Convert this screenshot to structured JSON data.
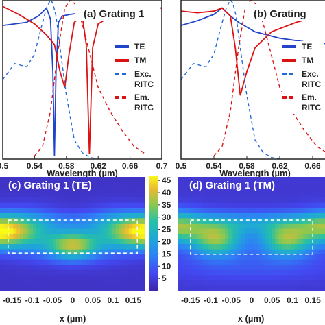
{
  "chart_data": [
    {
      "id": "a",
      "type": "line",
      "title": "(a)  Grating 1",
      "xlabel": "Wavelength (µm)",
      "xlim": [
        0.5,
        0.7
      ],
      "ylim": [
        0,
        1
      ],
      "x_ticks": [
        "0.5",
        "0.54",
        "0.58",
        "0.62",
        "0.66",
        "0.7"
      ],
      "x_tick_values": [
        0.5,
        0.54,
        0.58,
        0.62,
        0.66,
        0.7
      ],
      "legend_position": "right",
      "legend": [
        {
          "label": "TE",
          "color": "#2244cc",
          "dash": false
        },
        {
          "label": "TM",
          "color": "#dd1111",
          "dash": false
        },
        {
          "label": "Exc.\nRITC",
          "color": "#2266dd",
          "dash": true
        },
        {
          "label": "Em.\nRITC",
          "color": "#dd1111",
          "dash": true
        }
      ],
      "series": [
        {
          "name": "TE",
          "color": "#2244cc",
          "dash": false,
          "x": [
            0.5,
            0.53,
            0.545,
            0.555,
            0.56,
            0.563,
            0.565,
            0.567,
            0.57,
            0.575,
            0.585,
            0.6,
            0.62,
            0.65,
            0.7
          ],
          "y": [
            0.84,
            0.86,
            0.9,
            0.95,
            0.88,
            0.55,
            0.02,
            0.55,
            0.86,
            0.9,
            0.91,
            0.92,
            0.93,
            0.94,
            0.95
          ]
        },
        {
          "name": "TM",
          "color": "#dd1111",
          "dash": false,
          "x": [
            0.5,
            0.52,
            0.54,
            0.555,
            0.565,
            0.572,
            0.578,
            0.583,
            0.59,
            0.6,
            0.605,
            0.609,
            0.613,
            0.62,
            0.64,
            0.67,
            0.7
          ],
          "y": [
            0.96,
            0.91,
            0.85,
            0.78,
            0.72,
            0.55,
            0.45,
            0.65,
            0.86,
            0.9,
            0.72,
            0.03,
            0.7,
            0.85,
            0.91,
            0.94,
            0.95
          ]
        },
        {
          "name": "Exc. RITC",
          "color": "#2266dd",
          "dash": true,
          "x": [
            0.5,
            0.515,
            0.53,
            0.54,
            0.548,
            0.555,
            0.56,
            0.563,
            0.567,
            0.572,
            0.58,
            0.59,
            0.6,
            0.61,
            0.62
          ],
          "y": [
            0.5,
            0.6,
            0.58,
            0.66,
            0.82,
            0.95,
            1.0,
            0.98,
            0.9,
            0.7,
            0.4,
            0.12,
            0.04,
            0.01,
            0.0
          ]
        },
        {
          "name": "Em. RITC",
          "color": "#dd1111",
          "dash": true,
          "x": [
            0.54,
            0.55,
            0.56,
            0.57,
            0.578,
            0.585,
            0.592,
            0.6,
            0.61,
            0.62,
            0.635,
            0.65,
            0.665,
            0.68
          ],
          "y": [
            0.02,
            0.08,
            0.3,
            0.7,
            0.95,
            1.0,
            0.97,
            0.85,
            0.65,
            0.45,
            0.3,
            0.18,
            0.08,
            0.03
          ]
        }
      ]
    },
    {
      "id": "b",
      "type": "line",
      "title": "(b)  Grating",
      "xlabel": "Wavelength (µm)",
      "xlim": [
        0.5,
        0.7
      ],
      "ylim": [
        0,
        1
      ],
      "x_ticks": [
        "0.5",
        "0.54",
        "0.58",
        "0.62",
        "0.66"
      ],
      "x_tick_values": [
        0.5,
        0.54,
        0.58,
        0.62,
        0.66
      ],
      "legend_position": "right",
      "legend": [
        {
          "label": "TE",
          "color": "#2244cc",
          "dash": false
        },
        {
          "label": "TM",
          "color": "#dd1111",
          "dash": false
        },
        {
          "label": "Exc.\nRITC",
          "color": "#2266dd",
          "dash": true
        },
        {
          "label": "Em.\nRITC",
          "color": "#dd1111",
          "dash": true
        }
      ],
      "series": [
        {
          "name": "TE",
          "color": "#2244cc",
          "dash": false,
          "x": [
            0.5,
            0.52,
            0.54,
            0.55,
            0.56,
            0.57,
            0.59,
            0.62,
            0.66,
            0.7
          ],
          "y": [
            0.84,
            0.87,
            0.91,
            0.95,
            0.9,
            0.86,
            0.8,
            0.76,
            0.73,
            0.72
          ]
        },
        {
          "name": "TM",
          "color": "#dd1111",
          "dash": false,
          "x": [
            0.5,
            0.52,
            0.54,
            0.55,
            0.56,
            0.566,
            0.572,
            0.58,
            0.59,
            0.61,
            0.64,
            0.67,
            0.7
          ],
          "y": [
            0.93,
            0.92,
            0.93,
            0.95,
            0.9,
            0.7,
            0.4,
            0.55,
            0.7,
            0.8,
            0.86,
            0.9,
            0.92
          ]
        },
        {
          "name": "Exc. RITC",
          "color": "#2266dd",
          "dash": true,
          "x": [
            0.5,
            0.515,
            0.53,
            0.54,
            0.548,
            0.555,
            0.56,
            0.563,
            0.567,
            0.572,
            0.58,
            0.59,
            0.6,
            0.61,
            0.62
          ],
          "y": [
            0.5,
            0.6,
            0.58,
            0.66,
            0.82,
            0.95,
            1.0,
            0.98,
            0.9,
            0.7,
            0.4,
            0.12,
            0.04,
            0.01,
            0.0
          ]
        },
        {
          "name": "Em. RITC",
          "color": "#dd1111",
          "dash": true,
          "x": [
            0.54,
            0.55,
            0.56,
            0.57,
            0.578,
            0.585,
            0.592,
            0.6,
            0.61,
            0.62,
            0.635,
            0.65,
            0.665,
            0.68
          ],
          "y": [
            0.02,
            0.08,
            0.3,
            0.7,
            0.95,
            1.0,
            0.97,
            0.85,
            0.65,
            0.45,
            0.3,
            0.18,
            0.08,
            0.03
          ]
        }
      ]
    },
    {
      "id": "c",
      "type": "heatmap",
      "title": "(c)  Grating 1 (TE)",
      "xlabel": "x (µm)",
      "xlim": [
        -0.18,
        0.18
      ],
      "x_ticks": [
        "-0.15",
        "-0.1",
        "-0.05",
        "0",
        "0.05",
        "0.1",
        "0.15"
      ],
      "x_tick_values": [
        -0.15,
        -0.1,
        -0.05,
        0,
        0.05,
        0.1,
        0.15
      ],
      "colorbar": {
        "min": 0,
        "max": 47,
        "ticks": [
          "5",
          "10",
          "15",
          "20",
          "25",
          "30",
          "35",
          "40",
          "45"
        ],
        "tick_values": [
          5,
          10,
          15,
          20,
          25,
          30,
          35,
          40,
          45
        ]
      },
      "background_value": 3,
      "hotspots": [
        {
          "x": -0.19,
          "y": 0.52,
          "value": 47,
          "sx": 0.06,
          "sy": 0.1
        },
        {
          "x": 0.19,
          "y": 0.52,
          "value": 47,
          "sx": 0.06,
          "sy": 0.1
        },
        {
          "x": 0.0,
          "y": 0.4,
          "value": 37,
          "sx": 0.045,
          "sy": 0.09
        },
        {
          "x": -0.1,
          "y": 0.5,
          "value": 15,
          "sx": 0.05,
          "sy": 0.14
        },
        {
          "x": 0.1,
          "y": 0.5,
          "value": 15,
          "sx": 0.05,
          "sy": 0.14
        },
        {
          "x": 0.0,
          "y": 0.62,
          "value": 10,
          "sx": 0.12,
          "sy": 0.06
        }
      ],
      "dashed_box": {
        "x": [
          -0.16,
          0.16
        ],
        "y": [
          0.33,
          0.62
        ]
      }
    },
    {
      "id": "d",
      "type": "heatmap",
      "title": "(d)  Grating 1 (TM)",
      "xlabel": "x (µm)",
      "xlim": [
        -0.18,
        0.18
      ],
      "x_ticks": [
        "-0.15",
        "-0.1",
        "-0.05",
        "0",
        "0.05",
        "0.1",
        "0.15"
      ],
      "x_tick_values": [
        -0.15,
        -0.1,
        -0.05,
        0,
        0.05,
        0.1,
        0.15
      ],
      "colorbar": {
        "min": 0,
        "max": 47
      },
      "background_value": 4,
      "hotspots": [
        {
          "x": -0.085,
          "y": 0.45,
          "value": 34,
          "sx": 0.045,
          "sy": 0.1
        },
        {
          "x": 0.085,
          "y": 0.45,
          "value": 34,
          "sx": 0.045,
          "sy": 0.1
        },
        {
          "x": -0.19,
          "y": 0.55,
          "value": 30,
          "sx": 0.05,
          "sy": 0.1
        },
        {
          "x": 0.19,
          "y": 0.55,
          "value": 30,
          "sx": 0.05,
          "sy": 0.1
        },
        {
          "x": 0.0,
          "y": 0.6,
          "value": 18,
          "sx": 0.16,
          "sy": 0.07
        },
        {
          "x": 0.0,
          "y": 0.22,
          "value": 9,
          "sx": 0.16,
          "sy": 0.1
        }
      ],
      "dashed_box": {
        "x": [
          -0.15,
          0.15
        ],
        "y": [
          0.32,
          0.62
        ]
      }
    }
  ]
}
